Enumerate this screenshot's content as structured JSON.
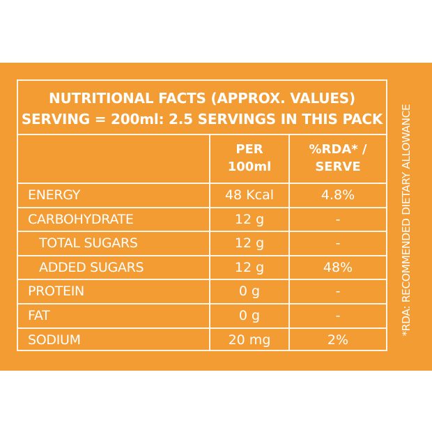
{
  "heading": {
    "line1": "NUTRITIONAL FACTS  (APPROX. VALUES)",
    "line2": "SERVING = 200ml: 2.5 SERVINGS IN THIS PACK"
  },
  "columns": {
    "per_100ml_line1": "PER",
    "per_100ml_line2": "100ml",
    "rda_line1": "%RDA* /",
    "rda_line2": "SERVE"
  },
  "rows": [
    {
      "name": "ENERGY",
      "per_100ml": "48 Kcal",
      "rda": "4.8%"
    },
    {
      "name": "CARBOHYDRATE",
      "per_100ml": "12 g",
      "rda": "-"
    },
    {
      "name": "TOTAL SUGARS",
      "per_100ml": "12 g",
      "rda": "-"
    },
    {
      "name": "ADDED SUGARS",
      "per_100ml": "12 g",
      "rda": "48%"
    },
    {
      "name": "PROTEIN",
      "per_100ml": "0 g",
      "rda": "-"
    },
    {
      "name": "FAT",
      "per_100ml": "0 g",
      "rda": "-"
    },
    {
      "name": "SODIUM",
      "per_100ml": "20 mg",
      "rda": "2%"
    }
  ],
  "side_note": "*RDA: RECOMMENDED DIETARY ALLOWANCE",
  "colors": {
    "background": "#f39c34",
    "text": "#ffffff",
    "rule": "#fff4e6"
  }
}
